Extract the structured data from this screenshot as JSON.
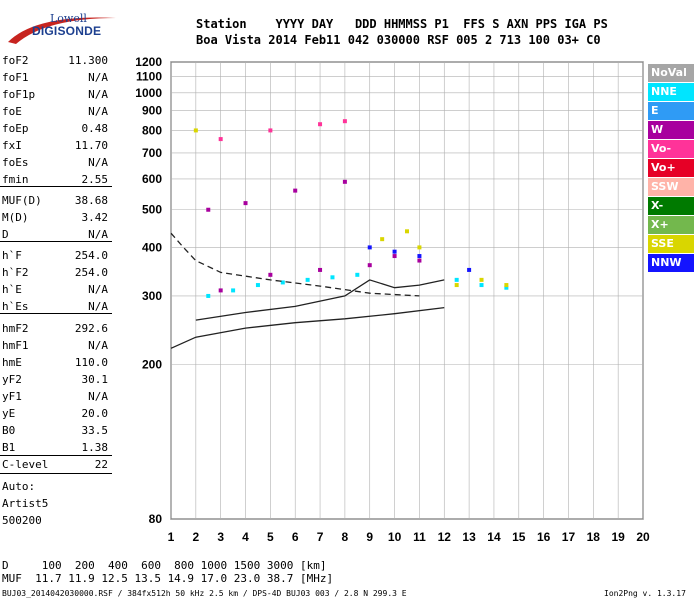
{
  "logo": {
    "line1": "Lowell",
    "line2": "DIGISONDE"
  },
  "header": {
    "labels": "Station    YYYY DAY   DDD HHMMSS P1  FFS S AXN PPS IGA PS",
    "values": "Boa Vista 2014 Feb11 042 030000 RSF 005 2 713 100 03+ C0"
  },
  "parameters": [
    {
      "label": "foF2",
      "value": "11.300"
    },
    {
      "label": "foF1",
      "value": "N/A"
    },
    {
      "label": "foF1p",
      "value": "N/A"
    },
    {
      "label": "foE",
      "value": "N/A"
    },
    {
      "label": "foEp",
      "value": "0.48"
    },
    {
      "label": "fxI",
      "value": "11.70"
    },
    {
      "label": "foEs",
      "value": "N/A"
    },
    {
      "label": "fmin",
      "value": "2.55"
    },
    {
      "label": "MUF(D)",
      "value": "38.68"
    },
    {
      "label": "M(D)",
      "value": "3.42"
    },
    {
      "label": "D",
      "value": "N/A"
    },
    {
      "label": "h`F",
      "value": "254.0"
    },
    {
      "label": "h`F2",
      "value": "254.0"
    },
    {
      "label": "h`E",
      "value": "N/A"
    },
    {
      "label": "h`Es",
      "value": "N/A"
    },
    {
      "label": "hmF2",
      "value": "292.6"
    },
    {
      "label": "hmF1",
      "value": "N/A"
    },
    {
      "label": "hmE",
      "value": "110.0"
    },
    {
      "label": "yF2",
      "value": "30.1"
    },
    {
      "label": "yF1",
      "value": "N/A"
    },
    {
      "label": "yE",
      "value": "20.0"
    },
    {
      "label": "B0",
      "value": "33.5"
    },
    {
      "label": "B1",
      "value": "1.38"
    },
    {
      "label": "C-level",
      "value": "22"
    }
  ],
  "autoscaling": {
    "line1": "Auto:",
    "line2": "Artist5",
    "line3": "500200"
  },
  "legend": [
    {
      "label": "NoVal",
      "color": "#a6a6a6"
    },
    {
      "label": "NNE",
      "color": "#00e5ff"
    },
    {
      "label": "E",
      "color": "#2f9bf5"
    },
    {
      "label": "W",
      "color": "#a8009e"
    },
    {
      "label": "Vo-",
      "color": "#ff3399"
    },
    {
      "label": "Vo+",
      "color": "#e60026"
    },
    {
      "label": "SSW",
      "color": "#ffb3a8"
    },
    {
      "label": "X-",
      "color": "#007a00"
    },
    {
      "label": "X+",
      "color": "#73b84d"
    },
    {
      "label": "SSE",
      "color": "#d9d600"
    },
    {
      "label": "NNW",
      "color": "#1414ff"
    }
  ],
  "chart_data": {
    "type": "scatter",
    "xlim": [
      1,
      20
    ],
    "ylim": [
      80,
      1200
    ],
    "xticks": [
      "1",
      "2",
      "3",
      "4",
      "5",
      "6",
      "7",
      "8",
      "9",
      "10",
      "11",
      "12",
      "13",
      "14",
      "15",
      "16",
      "17",
      "18",
      "19",
      "20"
    ],
    "yticks": [
      "80",
      "200",
      "300",
      "400",
      "500",
      "600",
      "700",
      "800",
      "900",
      "1000",
      "1100",
      "1200"
    ],
    "y_scale": "log",
    "grid": true,
    "series": [
      {
        "name": "NNE",
        "points": [
          [
            2.5,
            300
          ],
          [
            3.5,
            310
          ],
          [
            4.5,
            320
          ],
          [
            5.5,
            325
          ],
          [
            6.5,
            330
          ],
          [
            7.5,
            335
          ],
          [
            8.5,
            340
          ],
          [
            12.5,
            330
          ],
          [
            13.5,
            320
          ],
          [
            14.5,
            315
          ]
        ]
      },
      {
        "name": "W",
        "points": [
          [
            3,
            310
          ],
          [
            5,
            340
          ],
          [
            7,
            350
          ],
          [
            9,
            360
          ],
          [
            10,
            380
          ],
          [
            11,
            370
          ],
          [
            2.5,
            500
          ],
          [
            4,
            520
          ],
          [
            6,
            560
          ],
          [
            8,
            590
          ]
        ]
      },
      {
        "name": "SSE",
        "points": [
          [
            9.5,
            420
          ],
          [
            10.5,
            440
          ],
          [
            11,
            400
          ],
          [
            12.5,
            320
          ],
          [
            13.5,
            330
          ],
          [
            14.5,
            320
          ],
          [
            2,
            800
          ]
        ]
      },
      {
        "name": "NNW",
        "points": [
          [
            9,
            400
          ],
          [
            10,
            390
          ],
          [
            11,
            380
          ],
          [
            13,
            350
          ]
        ]
      },
      {
        "name": "Vo-",
        "points": [
          [
            3,
            760
          ],
          [
            5,
            800
          ],
          [
            7,
            830
          ],
          [
            8,
            845
          ]
        ]
      }
    ],
    "traces": [
      {
        "name": "profile_lower",
        "points": [
          [
            1,
            220
          ],
          [
            2,
            235
          ],
          [
            4,
            248
          ],
          [
            6,
            256
          ],
          [
            8,
            262
          ],
          [
            10,
            270
          ],
          [
            12,
            280
          ]
        ]
      },
      {
        "name": "profile_upper",
        "points": [
          [
            2,
            260
          ],
          [
            4,
            272
          ],
          [
            6,
            282
          ],
          [
            8,
            300
          ],
          [
            9,
            330
          ],
          [
            10,
            315
          ],
          [
            11,
            320
          ],
          [
            12,
            330
          ]
        ]
      },
      {
        "name": "profile_dashed",
        "points": [
          [
            1,
            435
          ],
          [
            1.5,
            400
          ],
          [
            2,
            370
          ],
          [
            3,
            345
          ],
          [
            5,
            330
          ],
          [
            7,
            318
          ],
          [
            9,
            305
          ],
          [
            11,
            300
          ]
        ]
      }
    ]
  },
  "bottom": {
    "d_row": "D     100  200  400  600  800 1000 1500 3000 [km]",
    "muf_row": "MUF  11.7 11.9 12.5 13.5 14.9 17.0 23.0 38.7 [MHz]"
  },
  "footer": {
    "file_info": "BUJ03_2014042030000.RSF / 384fx512h 50 kHz 2.5 km / DPS-4D BUJ03 003 / 2.8 N 299.3 E",
    "version": "Ion2Png v. 1.3.17"
  }
}
